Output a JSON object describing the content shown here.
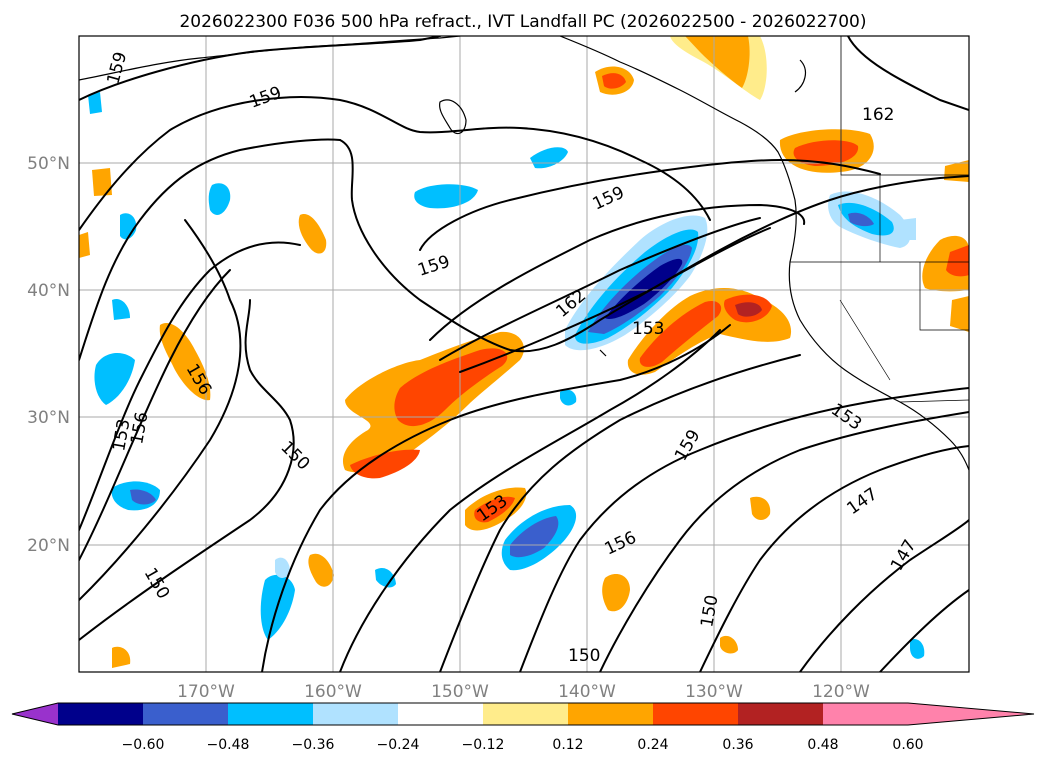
{
  "title": "2026022300 F036 500 hPa refract., IVT Landfall PC (2026022500 - 2026022700)",
  "map": {
    "lat_labels": [
      "50°N",
      "40°N",
      "30°N",
      "20°N"
    ],
    "lon_labels": [
      "170°W",
      "160°W",
      "150°W",
      "140°W",
      "130°W",
      "120°W"
    ],
    "contour_labels": [
      "159",
      "159",
      "162",
      "159",
      "159",
      "162",
      "153",
      "156",
      "153",
      "156",
      "150",
      "153",
      "159",
      "156",
      "150",
      "150",
      "153",
      "147",
      "147",
      "150"
    ]
  },
  "colorbar": {
    "ticks": [
      "−0.60",
      "−0.48",
      "−0.36",
      "−0.24",
      "−0.12",
      "0.12",
      "0.24",
      "0.36",
      "0.48",
      "0.60"
    ],
    "colors": [
      "#9932cc",
      "#00008b",
      "#3a5fcd",
      "#00bfff",
      "#b0e2ff",
      "#ffffff",
      "#ffec8b",
      "#ffa500",
      "#ff4500",
      "#b22222",
      "#ff82ab"
    ]
  }
}
